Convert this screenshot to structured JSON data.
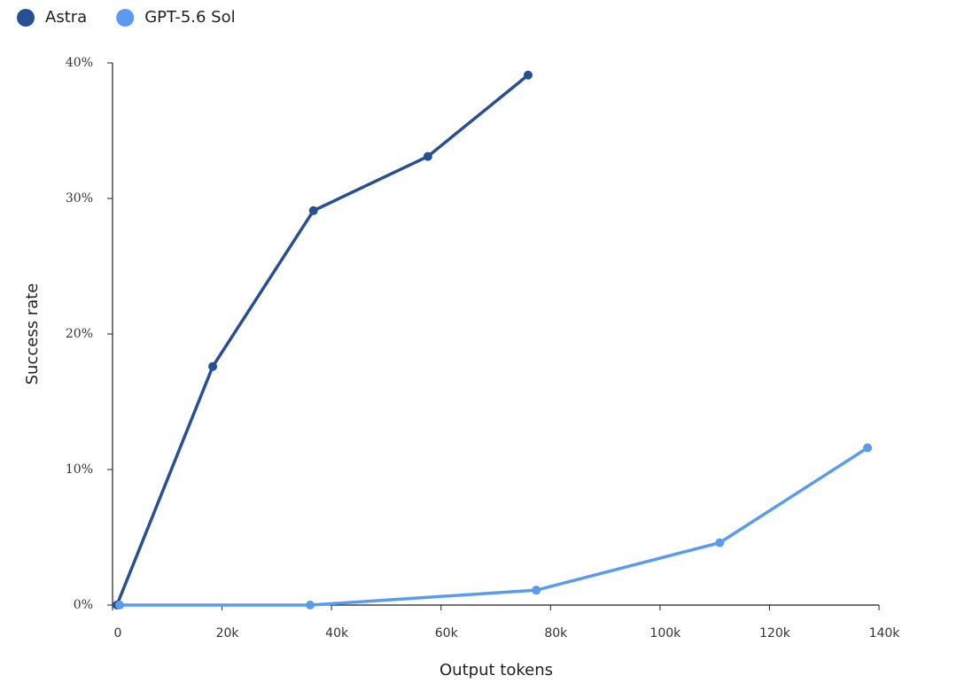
{
  "chart_data": {
    "type": "line",
    "x_label": "Output tokens",
    "y_label": "Success rate",
    "xlim": [
      0,
      140000
    ],
    "ylim": [
      0,
      40
    ],
    "xticks": [
      0,
      {
        "value": 20000,
        "label": "20k"
      },
      {
        "value": 40000,
        "label": "40k"
      },
      {
        "value": 60000,
        "label": "60k"
      },
      {
        "value": 80000,
        "label": "80k"
      },
      {
        "value": 100000,
        "label": "100k"
      },
      {
        "value": 120000,
        "label": "120k"
      },
      {
        "value": 140000,
        "label": "140k"
      }
    ],
    "yticks": [
      {
        "value": 0,
        "label": "0%"
      },
      {
        "value": 10,
        "label": "10%"
      },
      {
        "value": 20,
        "label": "20%"
      },
      {
        "value": 30,
        "label": "30%"
      },
      {
        "value": 40,
        "label": "40%"
      }
    ],
    "grid": false,
    "legend": "top-left",
    "series": [
      {
        "name": "Astra",
        "color": "#264f94",
        "x": [
          800,
          18300,
          36700,
          57600,
          75900
        ],
        "values": [
          0,
          17.6,
          29.1,
          33.1,
          39.1
        ]
      },
      {
        "name": "GPT-5.6 Sol",
        "color": "#5b9bef",
        "x": [
          1300,
          36100,
          77400,
          110900,
          137900
        ],
        "values": [
          0,
          0,
          1.1,
          4.6,
          11.6
        ]
      }
    ]
  }
}
